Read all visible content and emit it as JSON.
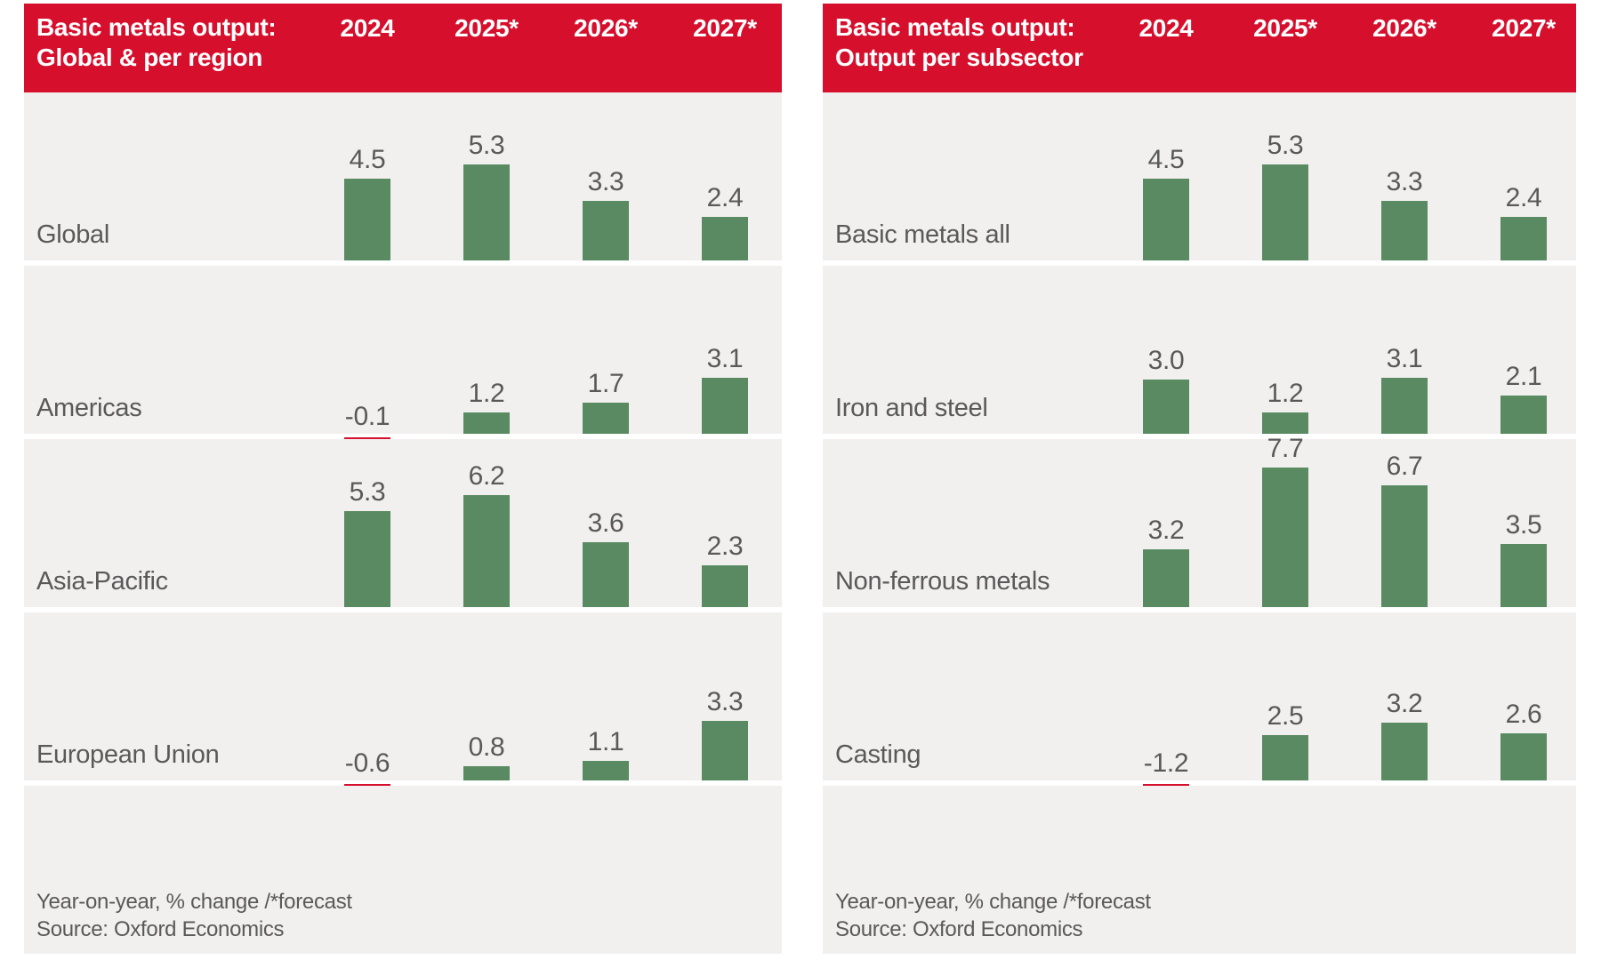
{
  "colors": {
    "header_red": "#D60F2D",
    "bar_green": "#598A62",
    "bar_negative_red": "#D60F2D",
    "band_gray": "#F1F0EE",
    "text_gray": "#595959",
    "title_white": "#FFFFFF"
  },
  "chart_data": [
    {
      "type": "bar",
      "title": "Basic metals output:",
      "subtitle": "Global & per region",
      "columns": [
        "2024",
        "2025*",
        "2026*",
        "2027*"
      ],
      "categories": [
        "Global",
        "Americas",
        "Asia-Pacific",
        "European Union"
      ],
      "series": [
        {
          "name": "Global",
          "values": [
            4.5,
            5.3,
            3.3,
            2.4
          ]
        },
        {
          "name": "Americas",
          "values": [
            -0.1,
            1.2,
            1.7,
            3.1
          ]
        },
        {
          "name": "Asia-Pacific",
          "values": [
            5.3,
            6.2,
            3.6,
            2.3
          ]
        },
        {
          "name": "European Union",
          "values": [
            -0.6,
            0.8,
            1.1,
            3.3
          ]
        }
      ],
      "footnote": "Year-on-year, % change /*forecast",
      "source": "Source: Oxford Economics",
      "legend_position": "none",
      "grid": false
    },
    {
      "type": "bar",
      "title": "Basic metals output:",
      "subtitle": "Output per subsector",
      "columns": [
        "2024",
        "2025*",
        "2026*",
        "2027*"
      ],
      "categories": [
        "Basic metals all",
        "Iron and steel",
        "Non-ferrous metals",
        "Casting"
      ],
      "series": [
        {
          "name": "Basic metals all",
          "values": [
            4.5,
            5.3,
            3.3,
            2.4
          ]
        },
        {
          "name": "Iron and steel",
          "values": [
            3.0,
            1.2,
            3.1,
            2.1
          ]
        },
        {
          "name": "Non-ferrous metals",
          "values": [
            3.2,
            7.7,
            6.7,
            3.5
          ]
        },
        {
          "name": "Casting",
          "values": [
            -1.2,
            2.5,
            3.2,
            2.6
          ]
        }
      ],
      "footnote": "Year-on-year, % change /*forecast",
      "source": "Source: Oxford Economics",
      "legend_position": "none",
      "grid": false
    }
  ]
}
